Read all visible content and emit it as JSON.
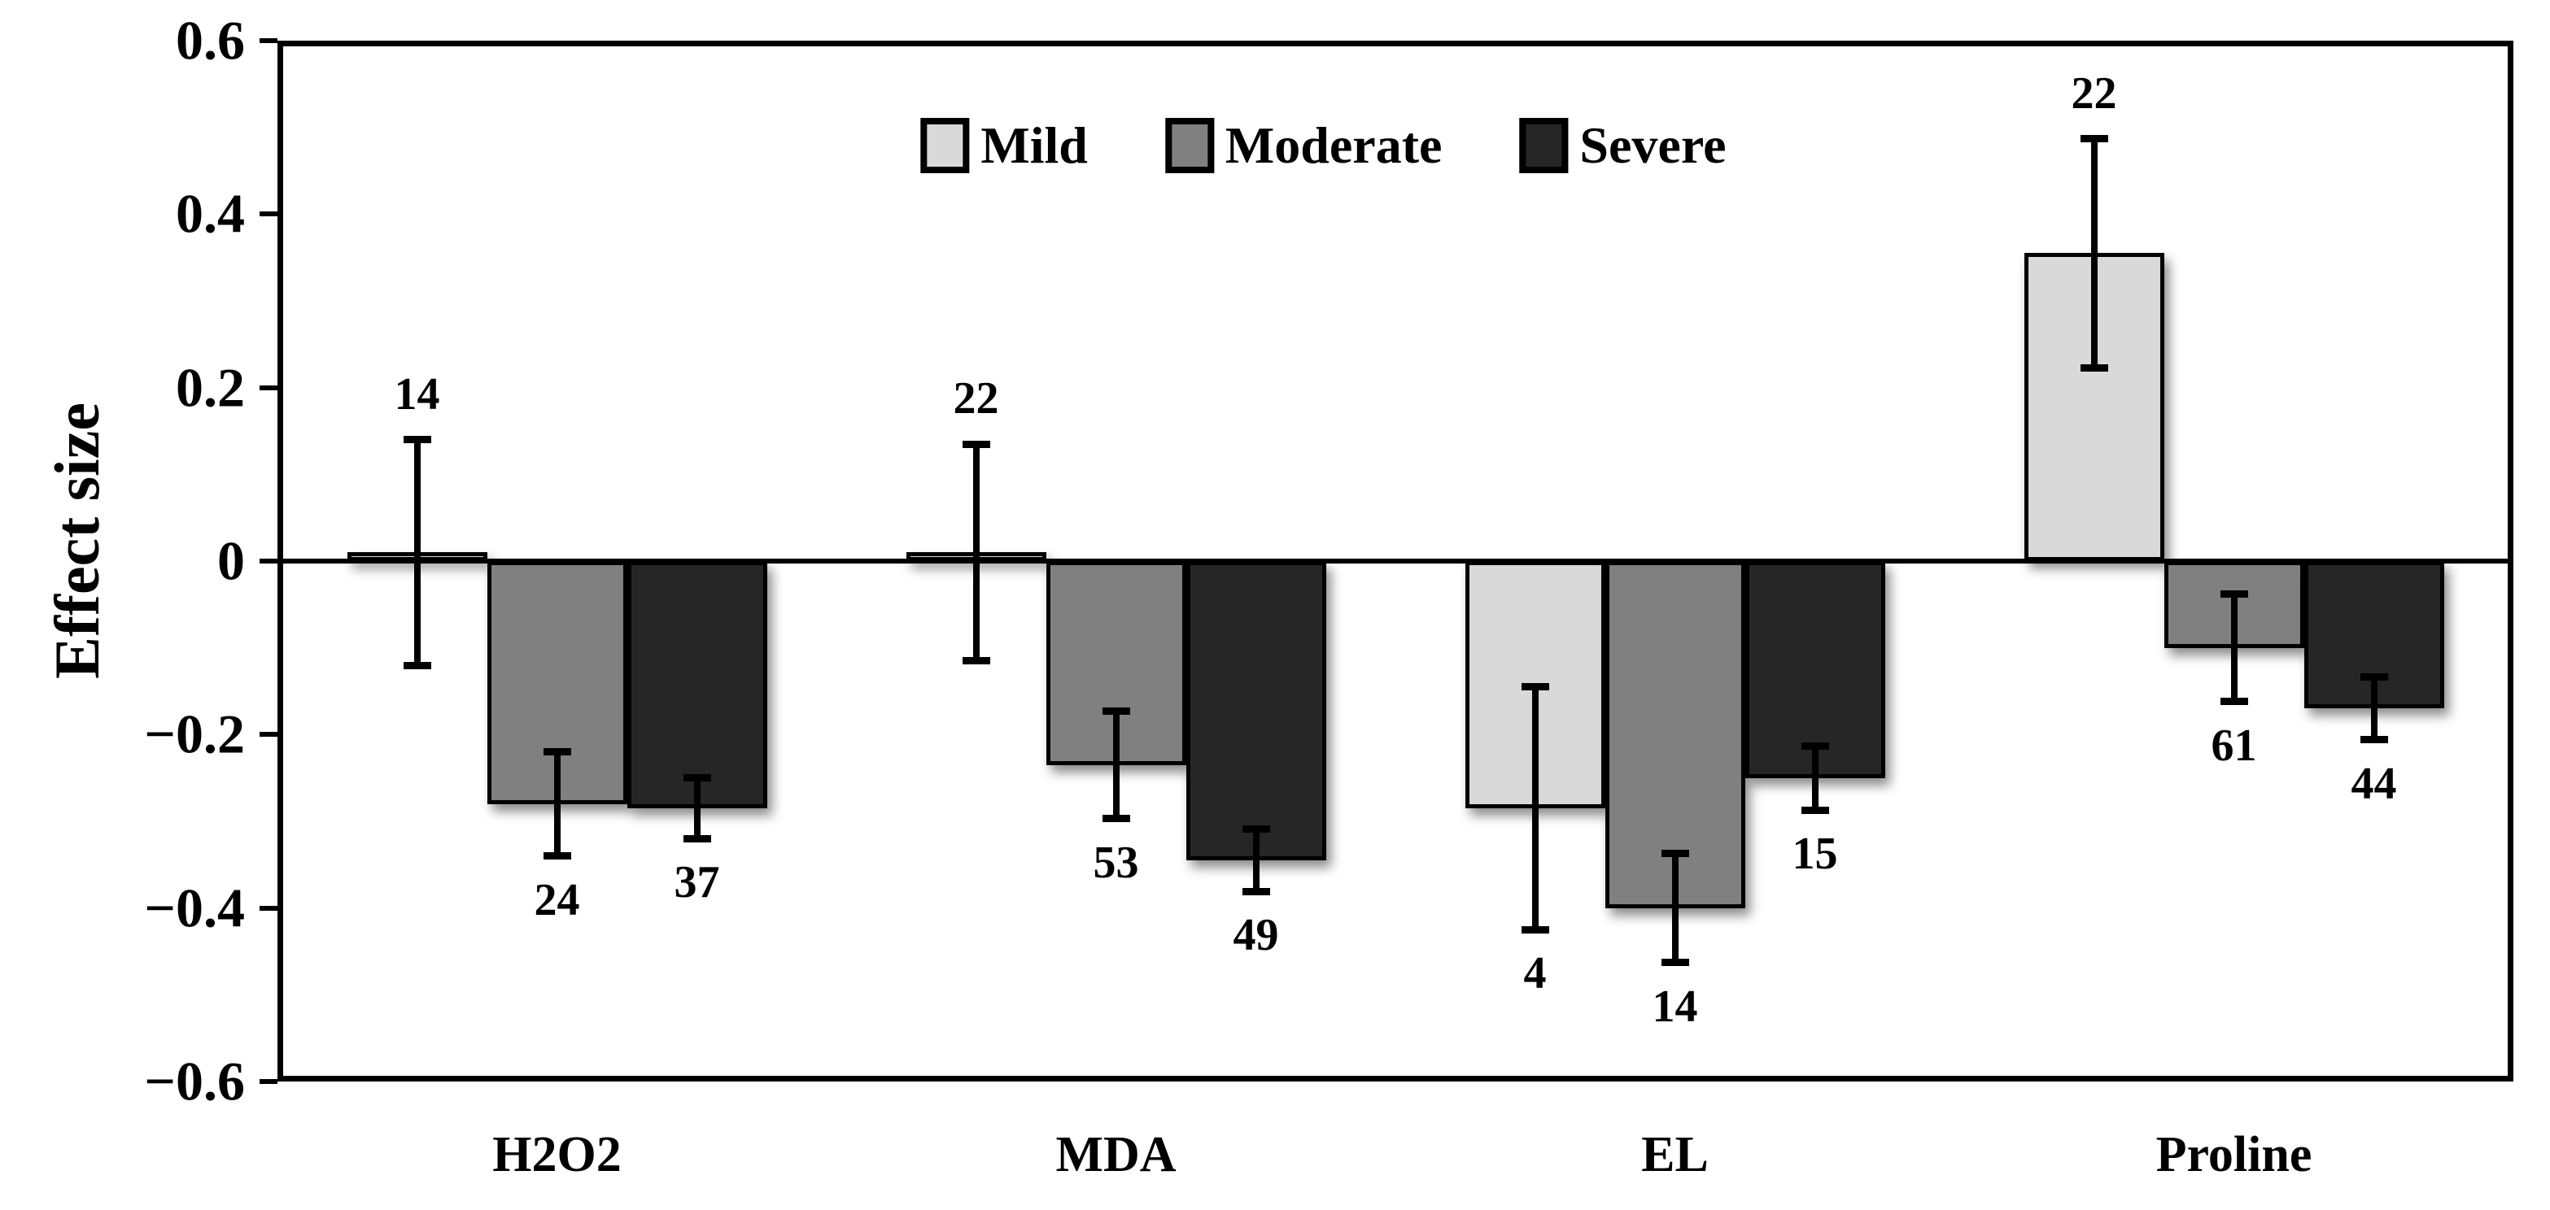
{
  "chart_data": {
    "type": "bar",
    "title": "",
    "ylabel": "Effect size",
    "xlabel": "",
    "categories": [
      "H2O2",
      "MDA",
      "EL",
      "Proline"
    ],
    "series": [
      {
        "name": "Mild",
        "color": "#d9d9d9",
        "values": [
          0.01,
          0.01,
          -0.285,
          0.355
        ],
        "errors": [
          0.13,
          0.125,
          0.14,
          0.132
        ],
        "labels": [
          "14",
          "22",
          "4",
          "22"
        ]
      },
      {
        "name": "Moderate",
        "color": "#808080",
        "values": [
          -0.28,
          -0.235,
          -0.4,
          -0.1
        ],
        "errors": [
          0.06,
          0.062,
          0.063,
          0.062
        ],
        "labels": [
          "24",
          "53",
          "14",
          "61"
        ]
      },
      {
        "name": "Severe",
        "color": "#262626",
        "values": [
          -0.285,
          -0.345,
          -0.25,
          -0.17
        ],
        "errors": [
          0.035,
          0.036,
          0.037,
          0.036
        ],
        "labels": [
          "37",
          "49",
          "15",
          "44"
        ]
      }
    ],
    "ylim": [
      -0.6,
      0.6
    ],
    "y_ticks": [
      "0.6",
      "0.4",
      "0.2",
      "0",
      "−0.2",
      "−0.4",
      "−0.6"
    ],
    "y_tick_values": [
      0.6,
      0.4,
      0.2,
      0,
      -0.2,
      -0.4,
      -0.6
    ],
    "legend_position": "top-center",
    "grid": false,
    "bar_outline_color": "#000000",
    "axis_color": "#000000"
  }
}
